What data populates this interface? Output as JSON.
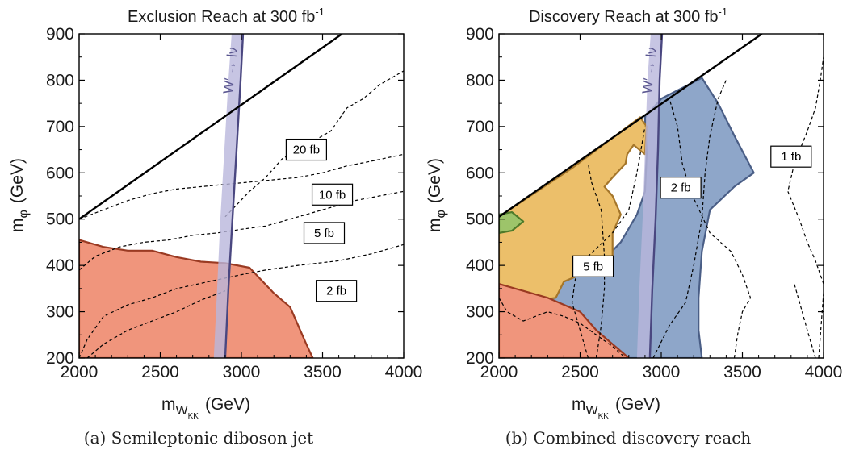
{
  "colors": {
    "exclusion_fill": "#f0957c",
    "exclusion_edge": "#9a3a22",
    "orange_fill": "#ecbf6a",
    "orange_edge": "#a5762a",
    "blue_fill": "#8ea6c9",
    "blue_edge": "#4a5e86",
    "green_fill": "#9dc46a",
    "green_edge": "#4e7a2a",
    "band_fill": "#b9b6dc",
    "band_edge": "#4a4780"
  },
  "chart_data": [
    {
      "type": "contour",
      "title_main": "Exclusion Reach at 300 fb",
      "title_sup": "-1",
      "xlabel_main": "m",
      "xlabel_sub": "W",
      "xlabel_subsub": "KK",
      "xlabel_unit": "(GeV)",
      "ylabel_main": "m",
      "ylabel_sub": "φ",
      "ylabel_unit": "(GeV)",
      "xlim": [
        2000,
        4000
      ],
      "ylim": [
        200,
        900
      ],
      "xticks": [
        "2000",
        "2500",
        "3000",
        "3500",
        "4000"
      ],
      "yticks": [
        "200",
        "300",
        "400",
        "500",
        "600",
        "700",
        "800",
        "900"
      ],
      "kinematic_line": [
        [
          2000,
          500
        ],
        [
          3620,
          900
        ]
      ],
      "regions": [
        {
          "fill": "exclusion",
          "points": [
            [
              2000,
              455
            ],
            [
              2150,
              440
            ],
            [
              2300,
              432
            ],
            [
              2450,
              432
            ],
            [
              2600,
              418
            ],
            [
              2750,
              408
            ],
            [
              2900,
              405
            ],
            [
              3050,
              395
            ],
            [
              3200,
              340
            ],
            [
              3300,
              310
            ],
            [
              3400,
              230
            ],
            [
              3440,
              200
            ],
            [
              2000,
              200
            ]
          ]
        }
      ],
      "w_band": {
        "label": "W′ → lν",
        "left": [
          [
            2830,
            200
          ],
          [
            2850,
            350
          ],
          [
            2870,
            500
          ],
          [
            2895,
            650
          ],
          [
            2920,
            800
          ],
          [
            2940,
            900
          ]
        ],
        "right": [
          [
            2900,
            200
          ],
          [
            2920,
            350
          ],
          [
            2945,
            500
          ],
          [
            2970,
            650
          ],
          [
            2995,
            800
          ],
          [
            3010,
            900
          ]
        ]
      },
      "contours": [
        {
          "label": "20 fb",
          "label_at": [
            3400,
            650
          ],
          "points": [
            [
              2900,
              505
            ],
            [
              3050,
              560
            ],
            [
              3150,
              590
            ],
            [
              3250,
              630
            ],
            [
              3350,
              650
            ],
            [
              3550,
              690
            ],
            [
              3650,
              740
            ],
            [
              3750,
              760
            ],
            [
              3850,
              790
            ],
            [
              3950,
              810
            ],
            [
              4000,
              820
            ]
          ]
        },
        {
          "label": "10 fb",
          "label_at": [
            3560,
            553
          ],
          "points": [
            [
              2000,
              500
            ],
            [
              2150,
              520
            ],
            [
              2300,
              540
            ],
            [
              2450,
              555
            ],
            [
              2600,
              565
            ],
            [
              2750,
              570
            ],
            [
              2900,
              575
            ],
            [
              3050,
              580
            ],
            [
              3200,
              585
            ],
            [
              3350,
              590
            ],
            [
              3500,
              600
            ],
            [
              3650,
              615
            ],
            [
              3800,
              625
            ],
            [
              4000,
              640
            ]
          ]
        },
        {
          "label": "5 fb",
          "label_at": [
            3510,
            470
          ],
          "points": [
            [
              2000,
              390
            ],
            [
              2100,
              420
            ],
            [
              2250,
              440
            ],
            [
              2400,
              450
            ],
            [
              2550,
              455
            ],
            [
              2700,
              465
            ],
            [
              2850,
              470
            ],
            [
              3000,
              478
            ],
            [
              3150,
              485
            ],
            [
              3300,
              500
            ],
            [
              3500,
              520
            ],
            [
              3700,
              540
            ],
            [
              3850,
              550
            ],
            [
              4000,
              560
            ]
          ]
        },
        {
          "label": "2 fb",
          "label_at": [
            3585,
            345
          ],
          "points": [
            [
              2000,
              200
            ],
            [
              2050,
              240
            ],
            [
              2150,
              290
            ],
            [
              2300,
              315
            ],
            [
              2450,
              330
            ],
            [
              2600,
              350
            ],
            [
              2800,
              365
            ],
            [
              3000,
              380
            ],
            [
              3150,
              390
            ],
            [
              3350,
              400
            ],
            [
              3600,
              410
            ],
            [
              3800,
              425
            ],
            [
              3950,
              440
            ],
            [
              4000,
              445
            ]
          ]
        },
        {
          "label": "",
          "points": [
            [
              2050,
              200
            ],
            [
              2150,
              230
            ],
            [
              2300,
              260
            ],
            [
              2450,
              280
            ],
            [
              2600,
              300
            ],
            [
              2750,
              325
            ],
            [
              2900,
              345
            ]
          ]
        }
      ],
      "caption": "(a) Semileptonic diboson jet"
    },
    {
      "type": "contour",
      "title_main": "Discovery Reach at 300 fb",
      "title_sup": "-1",
      "xlabel_main": "m",
      "xlabel_sub": "W",
      "xlabel_subsub": "KK",
      "xlabel_unit": "(GeV)",
      "ylabel_main": "m",
      "ylabel_sub": "φ",
      "ylabel_unit": "(GeV)",
      "xlim": [
        2000,
        4000
      ],
      "ylim": [
        200,
        900
      ],
      "xticks": [
        "2000",
        "2500",
        "3000",
        "3500",
        "4000"
      ],
      "yticks": [
        "200",
        "300",
        "400",
        "500",
        "600",
        "700",
        "800",
        "900"
      ],
      "kinematic_line": [
        [
          2000,
          505
        ],
        [
          3620,
          900
        ]
      ],
      "regions": [
        {
          "fill": "blue",
          "points": [
            [
              2900,
              720
            ],
            [
              3000,
              760
            ],
            [
              3250,
              805
            ],
            [
              3350,
              750
            ],
            [
              3450,
              680
            ],
            [
              3570,
              600
            ],
            [
              3450,
              570
            ],
            [
              3300,
              520
            ],
            [
              3250,
              430
            ],
            [
              3230,
              330
            ],
            [
              3230,
              260
            ],
            [
              3250,
              200
            ],
            [
              2750,
              200
            ],
            [
              2500,
              250
            ],
            [
              2300,
              325
            ],
            [
              2400,
              365
            ],
            [
              2600,
              395
            ],
            [
              2750,
              450
            ],
            [
              2850,
              510
            ],
            [
              2900,
              560
            ],
            [
              2910,
              640
            ]
          ]
        },
        {
          "fill": "orange",
          "points": [
            [
              2000,
              505
            ],
            [
              2450,
              610
            ],
            [
              2870,
              720
            ],
            [
              2910,
              700
            ],
            [
              2900,
              640
            ],
            [
              2830,
              660
            ],
            [
              2790,
              640
            ],
            [
              2780,
              620
            ],
            [
              2700,
              590
            ],
            [
              2650,
              570
            ],
            [
              2700,
              550
            ],
            [
              2750,
              510
            ],
            [
              2700,
              470
            ],
            [
              2700,
              420
            ],
            [
              2600,
              395
            ],
            [
              2400,
              365
            ],
            [
              2350,
              330
            ],
            [
              2250,
              325
            ],
            [
              2000,
              360
            ]
          ]
        },
        {
          "fill": "exclusion",
          "points": [
            [
              2000,
              360
            ],
            [
              2150,
              345
            ],
            [
              2300,
              330
            ],
            [
              2500,
              300
            ],
            [
              2600,
              260
            ],
            [
              2700,
              230
            ],
            [
              2800,
              200
            ],
            [
              2000,
              200
            ]
          ]
        },
        {
          "fill": "green",
          "points": [
            [
              2000,
              470
            ],
            [
              2080,
              475
            ],
            [
              2150,
              495
            ],
            [
              2080,
              515
            ],
            [
              2000,
              510
            ]
          ]
        }
      ],
      "w_band": {
        "label": "W′ → lν",
        "left": [
          [
            2850,
            200
          ],
          [
            2865,
            350
          ],
          [
            2885,
            500
          ],
          [
            2900,
            650
          ],
          [
            2915,
            800
          ],
          [
            2935,
            900
          ]
        ],
        "right": [
          [
            2930,
            200
          ],
          [
            2945,
            350
          ],
          [
            2965,
            500
          ],
          [
            2980,
            650
          ],
          [
            2990,
            800
          ],
          [
            3005,
            900
          ]
        ]
      },
      "contours": [
        {
          "label": "5 fb",
          "label_at": [
            2580,
            398
          ],
          "points": [
            [
              2000,
              330
            ],
            [
              2050,
              300
            ],
            [
              2150,
              280
            ],
            [
              2300,
              300
            ],
            [
              2400,
              290
            ],
            [
              2500,
              275
            ],
            [
              2600,
              250
            ],
            [
              2700,
              225
            ],
            [
              2780,
              200
            ]
          ]
        },
        {
          "label": "",
          "points": [
            [
              2600,
              200
            ],
            [
              2630,
              270
            ],
            [
              2650,
              350
            ],
            [
              2650,
              420
            ],
            [
              2630,
              520
            ],
            [
              2570,
              580
            ],
            [
              2550,
              620
            ]
          ]
        },
        {
          "label": "2 fb",
          "label_at": [
            3120,
            568
          ],
          "points": [
            [
              2950,
              200
            ],
            [
              3050,
              270
            ],
            [
              3150,
              320
            ],
            [
              3200,
              400
            ],
            [
              3250,
              500
            ],
            [
              3270,
              600
            ],
            [
              3300,
              680
            ],
            [
              3350,
              760
            ],
            [
              3400,
              800
            ]
          ]
        },
        {
          "label": "",
          "points": [
            [
              2550,
              200
            ],
            [
              2500,
              260
            ],
            [
              2450,
              320
            ],
            [
              2470,
              370
            ],
            [
              2550,
              420
            ],
            [
              2700,
              470
            ],
            [
              2800,
              520
            ],
            [
              2850,
              600
            ],
            [
              2900,
              700
            ]
          ]
        },
        {
          "label": "",
          "points": [
            [
              3450,
              200
            ],
            [
              3470,
              250
            ],
            [
              3500,
              300
            ],
            [
              3550,
              330
            ],
            [
              3500,
              380
            ],
            [
              3430,
              430
            ],
            [
              3300,
              470
            ],
            [
              3180,
              560
            ],
            [
              3130,
              620
            ],
            [
              3100,
              700
            ],
            [
              3050,
              760
            ]
          ]
        },
        {
          "label": "1 fb",
          "label_at": [
            3800,
            635
          ],
          "points": [
            [
              4000,
              360
            ],
            [
              3950,
              410
            ],
            [
              3900,
              450
            ],
            [
              3850,
              500
            ],
            [
              3780,
              560
            ],
            [
              3820,
              620
            ],
            [
              3900,
              690
            ],
            [
              3950,
              740
            ],
            [
              3980,
              800
            ],
            [
              4000,
              850
            ]
          ]
        },
        {
          "label": "",
          "points": [
            [
              3970,
              200
            ],
            [
              4000,
              340
            ]
          ]
        },
        {
          "label": "",
          "points": [
            [
              3950,
              200
            ],
            [
              3900,
              260
            ],
            [
              3860,
              310
            ],
            [
              3820,
              360
            ]
          ]
        }
      ],
      "caption": "(b) Combined discovery reach"
    }
  ]
}
